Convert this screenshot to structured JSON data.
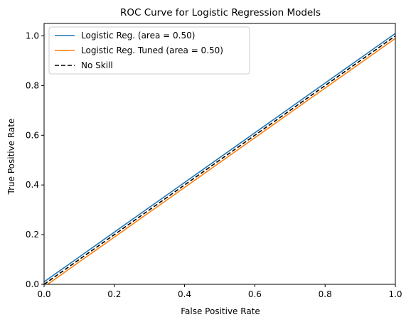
{
  "chart_data": {
    "type": "line",
    "title": "ROC Curve for Logistic Regression Models",
    "xlabel": "False Positive Rate",
    "ylabel": "True Positive Rate",
    "xlim": [
      0.0,
      1.0
    ],
    "ylim": [
      0.0,
      1.05
    ],
    "xticks": [
      0.0,
      0.2,
      0.4,
      0.6,
      0.8,
      1.0
    ],
    "yticks": [
      0.0,
      0.2,
      0.4,
      0.6,
      0.8,
      1.0
    ],
    "xtick_labels": [
      "0.0",
      "0.2",
      "0.4",
      "0.6",
      "0.8",
      "1.0"
    ],
    "ytick_labels": [
      "0.0",
      "0.2",
      "0.4",
      "0.6",
      "0.8",
      "1.0"
    ],
    "grid": false,
    "legend_position": "upper-left",
    "series": [
      {
        "name": "Logistic Reg. (area = 0.50)",
        "color": "#1f77b4",
        "style": "solid",
        "x": [
          0.0,
          1.0
        ],
        "y": [
          0.01,
          1.01
        ]
      },
      {
        "name": "Logistic Reg. Tuned (area = 0.50)",
        "color": "#ff7f0e",
        "style": "solid",
        "x": [
          0.0,
          1.0
        ],
        "y": [
          -0.01,
          0.99
        ]
      },
      {
        "name": "No Skill",
        "color": "#000000",
        "style": "dashed",
        "x": [
          0.0,
          1.0
        ],
        "y": [
          0.0,
          1.0
        ]
      }
    ]
  }
}
